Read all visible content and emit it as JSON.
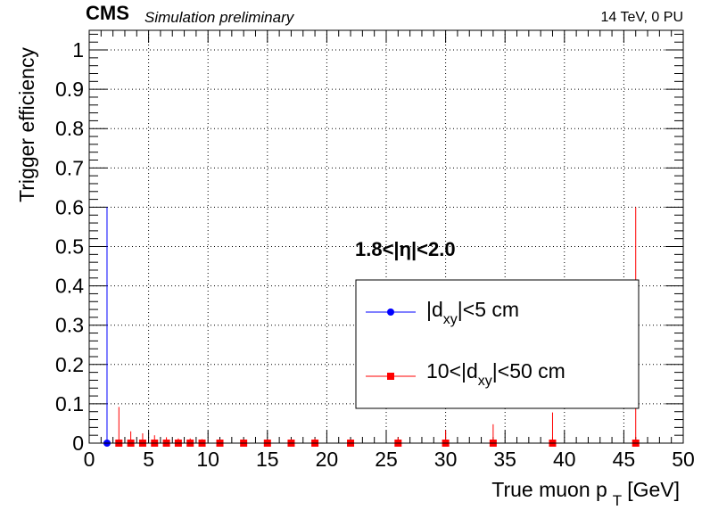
{
  "header": {
    "experiment": "CMS",
    "status": "Simulation preliminary",
    "conditions": "14 TeV, 0 PU"
  },
  "region_label": "1.8<|η|<2.0",
  "chart_data": {
    "type": "scatter",
    "title": "",
    "xlabel": "True muon p",
    "xlabel_sub": "T",
    "xlabel_unit": "[GeV]",
    "ylabel": "Trigger efficiency",
    "xlim": [
      0,
      50
    ],
    "ylim": [
      0,
      1.05
    ],
    "x_ticks": [
      0,
      5,
      10,
      15,
      20,
      25,
      30,
      35,
      40,
      45,
      50
    ],
    "x_tick_labels": [
      "0",
      "5",
      "10",
      "15",
      "20",
      "25",
      "30",
      "35",
      "40",
      "45",
      "50"
    ],
    "y_ticks": [
      0,
      0.1,
      0.2,
      0.3,
      0.4,
      0.5,
      0.6,
      0.7,
      0.8,
      0.9,
      1
    ],
    "y_tick_labels": [
      "0",
      "0.1",
      "0.2",
      "0.3",
      "0.4",
      "0.5",
      "0.6",
      "0.7",
      "0.8",
      "0.9",
      "1"
    ],
    "grid": true,
    "legend_position": "right-middle",
    "series": [
      {
        "name_parts": [
          "|d",
          "xy",
          "|<5 cm"
        ],
        "color": "#0000ff",
        "marker": "circle",
        "points": [
          {
            "x": 1.5,
            "y": 0.0,
            "err_low": 0.0,
            "err_high": 0.6
          }
        ]
      },
      {
        "name_parts": [
          "10<|d",
          "xy",
          "|<50 cm"
        ],
        "color": "#ff0000",
        "marker": "square",
        "points": [
          {
            "x": 2.5,
            "y": 0.0,
            "err_low": 0.0,
            "err_high": 0.092
          },
          {
            "x": 3.5,
            "y": 0.0,
            "err_low": 0.0,
            "err_high": 0.03
          },
          {
            "x": 4.5,
            "y": 0.0,
            "err_low": 0.0,
            "err_high": 0.025
          },
          {
            "x": 5.5,
            "y": 0.0,
            "err_low": 0.0,
            "err_high": 0.02
          },
          {
            "x": 6.5,
            "y": 0.0,
            "err_low": 0.0,
            "err_high": 0.015
          },
          {
            "x": 7.5,
            "y": 0.0,
            "err_low": 0.0,
            "err_high": 0.012
          },
          {
            "x": 8.5,
            "y": 0.0,
            "err_low": 0.0,
            "err_high": 0.012
          },
          {
            "x": 9.5,
            "y": 0.0,
            "err_low": 0.0,
            "err_high": 0.01
          },
          {
            "x": 11,
            "y": 0.0,
            "err_low": 0.0,
            "err_high": 0.008
          },
          {
            "x": 13,
            "y": 0.0,
            "err_low": 0.0,
            "err_high": 0.008
          },
          {
            "x": 15,
            "y": 0.0,
            "err_low": 0.0,
            "err_high": 0.008
          },
          {
            "x": 17,
            "y": 0.0,
            "err_low": 0.0,
            "err_high": 0.01
          },
          {
            "x": 19,
            "y": 0.0,
            "err_low": 0.0,
            "err_high": 0.012
          },
          {
            "x": 22,
            "y": 0.0,
            "err_low": 0.0,
            "err_high": 0.008
          },
          {
            "x": 26,
            "y": 0.0,
            "err_low": 0.0,
            "err_high": 0.015
          },
          {
            "x": 30,
            "y": 0.0,
            "err_low": 0.0,
            "err_high": 0.033
          },
          {
            "x": 34,
            "y": 0.0,
            "err_low": 0.0,
            "err_high": 0.048
          },
          {
            "x": 39,
            "y": 0.0,
            "err_low": 0.0,
            "err_high": 0.078
          },
          {
            "x": 46,
            "y": 0.0,
            "err_low": 0.0,
            "err_high": 0.6
          }
        ]
      }
    ]
  }
}
